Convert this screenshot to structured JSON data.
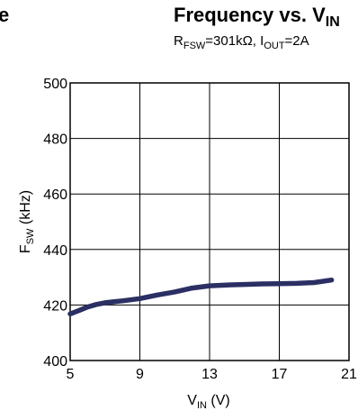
{
  "chart_data": {
    "type": "line",
    "title": "Frequency vs. V",
    "title_sub": "IN",
    "subtitle_parts": [
      "R",
      "FSW",
      "=301kΩ, I",
      "OUT",
      "=2A"
    ],
    "xlabel_parts": [
      "V",
      "IN",
      " (V)"
    ],
    "ylabel_parts": [
      "F",
      "SW",
      " (kHz)"
    ],
    "left_fragment": "e",
    "xlim": [
      5,
      21
    ],
    "ylim": [
      400,
      500
    ],
    "xticks": [
      "5",
      "9",
      "13",
      "17",
      "21"
    ],
    "yticks": [
      "400",
      "420",
      "440",
      "460",
      "480",
      "500"
    ],
    "xtick_values": [
      5,
      9,
      13,
      17,
      21
    ],
    "ytick_values": [
      400,
      420,
      440,
      460,
      480,
      500
    ],
    "grid": true,
    "line_color": "#2b2f63",
    "series": [
      {
        "x": [
          5,
          5.5,
          6,
          6.5,
          7,
          8,
          9,
          10,
          11,
          12,
          13,
          14,
          15,
          16,
          17,
          18,
          19,
          20
        ],
        "y": [
          416.8,
          418,
          419.3,
          420.2,
          420.8,
          421.5,
          422.3,
          423.6,
          424.7,
          426.1,
          426.9,
          427.2,
          427.4,
          427.6,
          427.7,
          427.8,
          428.1,
          429
        ]
      }
    ]
  }
}
